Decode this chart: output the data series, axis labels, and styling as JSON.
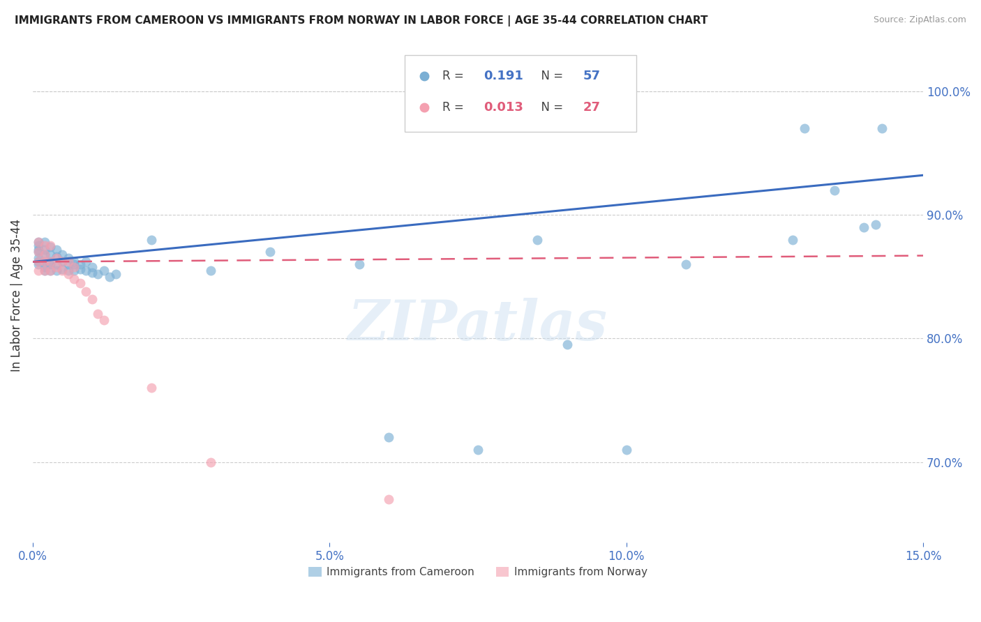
{
  "title": "IMMIGRANTS FROM CAMEROON VS IMMIGRANTS FROM NORWAY IN LABOR FORCE | AGE 35-44 CORRELATION CHART",
  "source": "Source: ZipAtlas.com",
  "ylabel": "In Labor Force | Age 35-44",
  "xlim": [
    0.0,
    0.15
  ],
  "ylim": [
    0.635,
    1.035
  ],
  "xticks": [
    0.0,
    0.05,
    0.1,
    0.15
  ],
  "xticklabels": [
    "0.0%",
    "5.0%",
    "10.0%",
    "15.0%"
  ],
  "yticks_right": [
    0.7,
    0.8,
    0.9,
    1.0
  ],
  "yticklabels_right": [
    "70.0%",
    "80.0%",
    "90.0%",
    "100.0%"
  ],
  "grid_color": "#cccccc",
  "background_color": "#ffffff",
  "cameroon_color": "#7bafd4",
  "norway_color": "#f4a0b0",
  "cameroon_R": "0.191",
  "cameroon_N": "57",
  "norway_R": "0.013",
  "norway_N": "27",
  "blue_color": "#4472c4",
  "pink_color": "#e05c7a",
  "watermark_text": "ZIPatlas",
  "cameroon_x": [
    0.001,
    0.001,
    0.001,
    0.001,
    0.001,
    0.001,
    0.001,
    0.002,
    0.002,
    0.002,
    0.002,
    0.002,
    0.002,
    0.003,
    0.003,
    0.003,
    0.003,
    0.003,
    0.004,
    0.004,
    0.004,
    0.004,
    0.005,
    0.005,
    0.005,
    0.006,
    0.006,
    0.006,
    0.007,
    0.007,
    0.007,
    0.008,
    0.008,
    0.009,
    0.009,
    0.01,
    0.01,
    0.011,
    0.012,
    0.013,
    0.014,
    0.02,
    0.03,
    0.04,
    0.055,
    0.06,
    0.075,
    0.085,
    0.09,
    0.1,
    0.11,
    0.128,
    0.13,
    0.135,
    0.14,
    0.142,
    0.143
  ],
  "cameroon_y": [
    0.86,
    0.862,
    0.865,
    0.87,
    0.872,
    0.875,
    0.878,
    0.855,
    0.858,
    0.862,
    0.868,
    0.872,
    0.878,
    0.855,
    0.86,
    0.862,
    0.868,
    0.874,
    0.855,
    0.86,
    0.866,
    0.872,
    0.856,
    0.862,
    0.868,
    0.855,
    0.86,
    0.865,
    0.855,
    0.86,
    0.862,
    0.856,
    0.86,
    0.855,
    0.862,
    0.853,
    0.858,
    0.852,
    0.855,
    0.85,
    0.852,
    0.88,
    0.855,
    0.87,
    0.86,
    0.72,
    0.71,
    0.88,
    0.795,
    0.71,
    0.86,
    0.88,
    0.97,
    0.92,
    0.89,
    0.892,
    0.97
  ],
  "norway_x": [
    0.001,
    0.001,
    0.001,
    0.001,
    0.002,
    0.002,
    0.002,
    0.002,
    0.003,
    0.003,
    0.003,
    0.004,
    0.004,
    0.005,
    0.005,
    0.006,
    0.006,
    0.007,
    0.007,
    0.008,
    0.009,
    0.01,
    0.011,
    0.012,
    0.02,
    0.03,
    0.06
  ],
  "norway_y": [
    0.855,
    0.862,
    0.87,
    0.878,
    0.855,
    0.862,
    0.868,
    0.875,
    0.855,
    0.862,
    0.875,
    0.858,
    0.865,
    0.855,
    0.862,
    0.852,
    0.862,
    0.848,
    0.858,
    0.845,
    0.838,
    0.832,
    0.82,
    0.815,
    0.76,
    0.7,
    0.67
  ],
  "trendline_blue_x0": 0.0,
  "trendline_blue_y0": 0.862,
  "trendline_blue_x1": 0.15,
  "trendline_blue_y1": 0.932,
  "trendline_pink_x0": 0.0,
  "trendline_pink_y0": 0.862,
  "trendline_pink_x1": 0.15,
  "trendline_pink_y1": 0.867
}
